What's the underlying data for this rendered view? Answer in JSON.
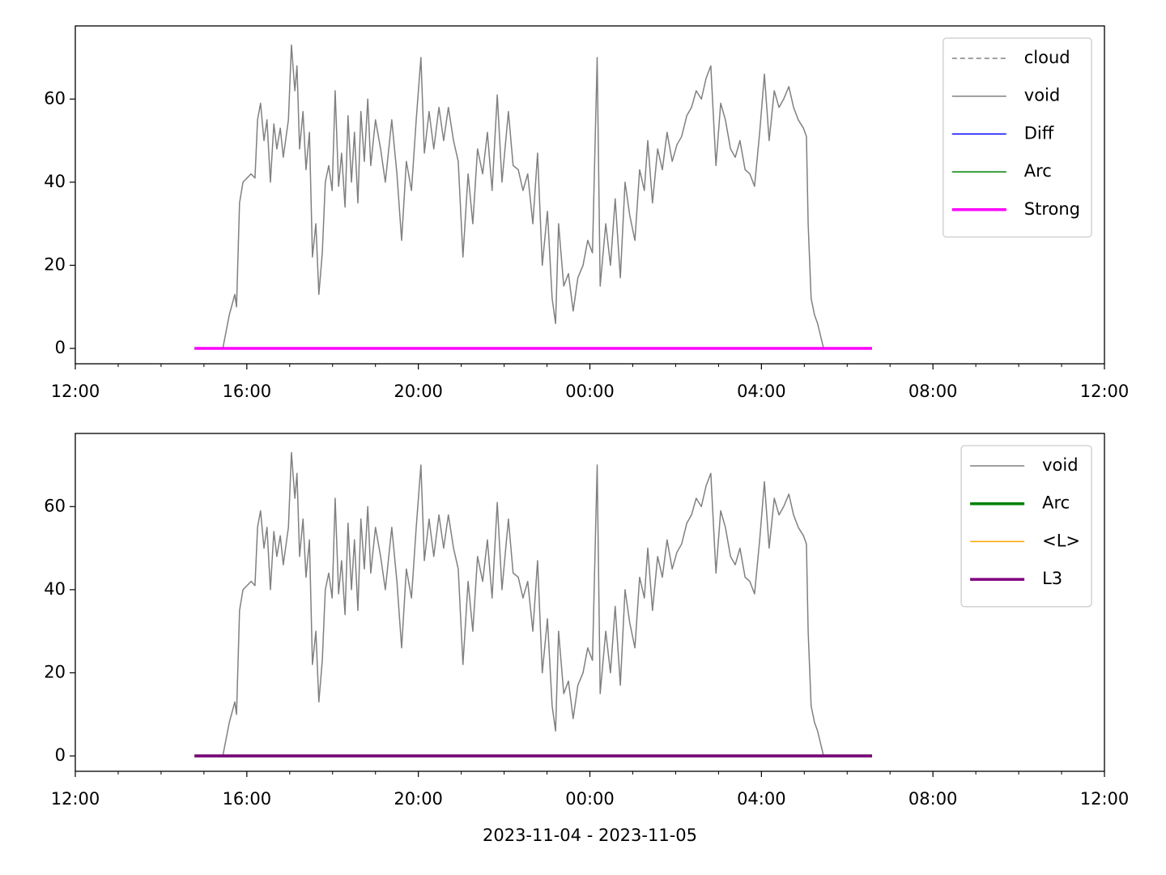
{
  "chart_data": [
    {
      "type": "line",
      "xlim": [
        12,
        36
      ],
      "ylim": [
        -3.7,
        77.6
      ],
      "xticks": [
        {
          "value": 12,
          "label": "12:00"
        },
        {
          "value": 16,
          "label": "16:00"
        },
        {
          "value": 20,
          "label": "20:00"
        },
        {
          "value": 24,
          "label": "00:00"
        },
        {
          "value": 28,
          "label": "04:00"
        },
        {
          "value": 32,
          "label": "08:00"
        },
        {
          "value": 36,
          "label": "12:00"
        }
      ],
      "xminorticks": [
        13,
        14,
        15,
        17,
        18,
        19,
        21,
        22,
        23,
        25,
        26,
        27,
        29,
        30,
        31,
        33,
        34,
        35
      ],
      "yticks": [
        0,
        20,
        40,
        60
      ],
      "legend": "upper right",
      "series": [
        {
          "name": "cloud",
          "color": "#808080",
          "linestyle": "dashed",
          "linewidth": 1.5,
          "x": [
            14.78,
            30.58
          ],
          "values": [
            0,
            0
          ]
        },
        {
          "name": "void",
          "color": "#808080",
          "linestyle": "solid",
          "linewidth": 1.5,
          "x": [
            15.44,
            15.59,
            15.72,
            15.76,
            15.83,
            15.91,
            16.1,
            16.19,
            16.25,
            16.32,
            16.4,
            16.47,
            16.55,
            16.63,
            16.7,
            16.78,
            16.85,
            16.97,
            17.04,
            17.12,
            17.17,
            17.23,
            17.31,
            17.38,
            17.46,
            17.53,
            17.61,
            17.68,
            17.76,
            17.83,
            17.91,
            17.99,
            18.06,
            18.14,
            18.21,
            18.29,
            18.36,
            18.44,
            18.51,
            18.59,
            18.66,
            18.74,
            18.82,
            18.89,
            19.0,
            19.12,
            19.23,
            19.38,
            19.5,
            19.61,
            19.72,
            19.84,
            19.95,
            20.06,
            20.14,
            20.25,
            20.36,
            20.48,
            20.59,
            20.7,
            20.82,
            20.93,
            21.04,
            21.16,
            21.27,
            21.38,
            21.5,
            21.61,
            21.72,
            21.84,
            21.95,
            22.1,
            22.21,
            22.33,
            22.44,
            22.55,
            22.67,
            22.78,
            22.89,
            23.01,
            23.12,
            23.2,
            23.27,
            23.39,
            23.5,
            23.61,
            23.72,
            23.84,
            23.95,
            24.06,
            24.17,
            24.24,
            24.37,
            24.48,
            24.59,
            24.71,
            24.82,
            24.93,
            25.05,
            25.16,
            25.27,
            25.35,
            25.46,
            25.58,
            25.69,
            25.8,
            25.92,
            26.03,
            26.14,
            26.26,
            26.37,
            26.48,
            26.6,
            26.71,
            26.82,
            26.94,
            27.05,
            27.16,
            27.28,
            27.39,
            27.5,
            27.62,
            27.73,
            27.84,
            27.96,
            28.07,
            28.18,
            28.3,
            28.41,
            28.52,
            28.64,
            28.75,
            28.86,
            28.98,
            29.05,
            29.09,
            29.16,
            29.24,
            29.31,
            29.45
          ],
          "values": [
            0,
            8,
            13,
            10,
            35,
            40,
            42,
            41,
            55,
            59,
            50,
            55,
            40,
            54,
            48,
            53,
            46,
            55,
            73,
            62,
            68,
            48,
            57,
            43,
            52,
            22,
            30,
            13,
            23,
            40,
            44,
            38,
            62,
            39,
            47,
            34,
            56,
            40,
            52,
            35,
            57,
            45,
            60,
            44,
            55,
            48,
            40,
            55,
            42,
            26,
            45,
            38,
            55,
            70,
            47,
            57,
            48,
            58,
            50,
            58,
            50,
            45,
            22,
            42,
            30,
            48,
            42,
            52,
            38,
            61,
            40,
            57,
            44,
            43,
            38,
            42,
            30,
            47,
            20,
            33,
            12,
            6,
            30,
            15,
            18,
            9,
            17,
            20,
            26,
            23,
            70,
            15,
            30,
            20,
            36,
            17,
            40,
            32,
            26,
            43,
            38,
            50,
            35,
            48,
            43,
            52,
            45,
            49,
            51,
            56,
            58,
            62,
            60,
            65,
            68,
            44,
            59,
            55,
            48,
            46,
            50,
            43,
            42,
            39,
            52,
            66,
            50,
            62,
            58,
            60,
            63,
            58,
            55,
            53,
            51,
            30,
            12,
            8,
            6,
            0
          ]
        },
        {
          "name": "Diff",
          "color": "#0000ff",
          "linestyle": "solid",
          "linewidth": 1.5,
          "x": [
            14.78,
            30.58
          ],
          "values": [
            0,
            0
          ]
        },
        {
          "name": "Arc",
          "color": "#008000",
          "linestyle": "solid",
          "linewidth": 1.5,
          "x": [
            14.78,
            30.58
          ],
          "values": [
            0,
            0
          ]
        },
        {
          "name": "Strong",
          "color": "#ff00ff",
          "linestyle": "solid",
          "linewidth": 3.5,
          "x": [
            14.78,
            30.58
          ],
          "values": [
            0,
            0
          ]
        }
      ]
    },
    {
      "type": "line",
      "xlabel": "2023-11-04 - 2023-11-05",
      "xlim": [
        12,
        36
      ],
      "ylim": [
        -3.7,
        77.6
      ],
      "xticks": [
        {
          "value": 12,
          "label": "12:00"
        },
        {
          "value": 16,
          "label": "16:00"
        },
        {
          "value": 20,
          "label": "20:00"
        },
        {
          "value": 24,
          "label": "00:00"
        },
        {
          "value": 28,
          "label": "04:00"
        },
        {
          "value": 32,
          "label": "08:00"
        },
        {
          "value": 36,
          "label": "12:00"
        }
      ],
      "xminorticks": [
        13,
        14,
        15,
        17,
        18,
        19,
        21,
        22,
        23,
        25,
        26,
        27,
        29,
        30,
        31,
        33,
        34,
        35
      ],
      "yticks": [
        0,
        20,
        40,
        60
      ],
      "legend": "upper right",
      "series": [
        {
          "name": "void",
          "color": "#808080",
          "linestyle": "solid",
          "linewidth": 1.5,
          "x": [
            15.44,
            15.59,
            15.72,
            15.76,
            15.83,
            15.91,
            16.1,
            16.19,
            16.25,
            16.32,
            16.4,
            16.47,
            16.55,
            16.63,
            16.7,
            16.78,
            16.85,
            16.97,
            17.04,
            17.12,
            17.17,
            17.23,
            17.31,
            17.38,
            17.46,
            17.53,
            17.61,
            17.68,
            17.76,
            17.83,
            17.91,
            17.99,
            18.06,
            18.14,
            18.21,
            18.29,
            18.36,
            18.44,
            18.51,
            18.59,
            18.66,
            18.74,
            18.82,
            18.89,
            19.0,
            19.12,
            19.23,
            19.38,
            19.5,
            19.61,
            19.72,
            19.84,
            19.95,
            20.06,
            20.14,
            20.25,
            20.36,
            20.48,
            20.59,
            20.7,
            20.82,
            20.93,
            21.04,
            21.16,
            21.27,
            21.38,
            21.5,
            21.61,
            21.72,
            21.84,
            21.95,
            22.1,
            22.21,
            22.33,
            22.44,
            22.55,
            22.67,
            22.78,
            22.89,
            23.01,
            23.12,
            23.2,
            23.27,
            23.39,
            23.5,
            23.61,
            23.72,
            23.84,
            23.95,
            24.06,
            24.17,
            24.24,
            24.37,
            24.48,
            24.59,
            24.71,
            24.82,
            24.93,
            25.05,
            25.16,
            25.27,
            25.35,
            25.46,
            25.58,
            25.69,
            25.8,
            25.92,
            26.03,
            26.14,
            26.26,
            26.37,
            26.48,
            26.6,
            26.71,
            26.82,
            26.94,
            27.05,
            27.16,
            27.28,
            27.39,
            27.5,
            27.62,
            27.73,
            27.84,
            27.96,
            28.07,
            28.18,
            28.3,
            28.41,
            28.52,
            28.64,
            28.75,
            28.86,
            28.98,
            29.05,
            29.09,
            29.16,
            29.24,
            29.31,
            29.45
          ],
          "values": [
            0,
            8,
            13,
            10,
            35,
            40,
            42,
            41,
            55,
            59,
            50,
            55,
            40,
            54,
            48,
            53,
            46,
            55,
            73,
            62,
            68,
            48,
            57,
            43,
            52,
            22,
            30,
            13,
            23,
            40,
            44,
            38,
            62,
            39,
            47,
            34,
            56,
            40,
            52,
            35,
            57,
            45,
            60,
            44,
            55,
            48,
            40,
            55,
            42,
            26,
            45,
            38,
            55,
            70,
            47,
            57,
            48,
            58,
            50,
            58,
            50,
            45,
            22,
            42,
            30,
            48,
            42,
            52,
            38,
            61,
            40,
            57,
            44,
            43,
            38,
            42,
            30,
            47,
            20,
            33,
            12,
            6,
            30,
            15,
            18,
            9,
            17,
            20,
            26,
            23,
            70,
            15,
            30,
            20,
            36,
            17,
            40,
            32,
            26,
            43,
            38,
            50,
            35,
            48,
            43,
            52,
            45,
            49,
            51,
            56,
            58,
            62,
            60,
            65,
            68,
            44,
            59,
            55,
            48,
            46,
            50,
            43,
            42,
            39,
            52,
            66,
            50,
            62,
            58,
            60,
            63,
            58,
            55,
            53,
            51,
            30,
            12,
            8,
            6,
            0
          ]
        },
        {
          "name": "Arc",
          "color": "#008000",
          "linestyle": "solid",
          "linewidth": 3.5,
          "x": [
            14.78,
            30.58
          ],
          "values": [
            0,
            0
          ]
        },
        {
          "name": "<L>",
          "color": "#ffa500",
          "linestyle": "solid",
          "linewidth": 1.5,
          "x": [
            14.78,
            30.58
          ],
          "values": [
            0,
            0
          ]
        },
        {
          "name": "L3",
          "color": "#800080",
          "linestyle": "solid",
          "linewidth": 3.5,
          "x": [
            14.78,
            30.58
          ],
          "values": [
            0,
            0
          ]
        }
      ]
    }
  ]
}
